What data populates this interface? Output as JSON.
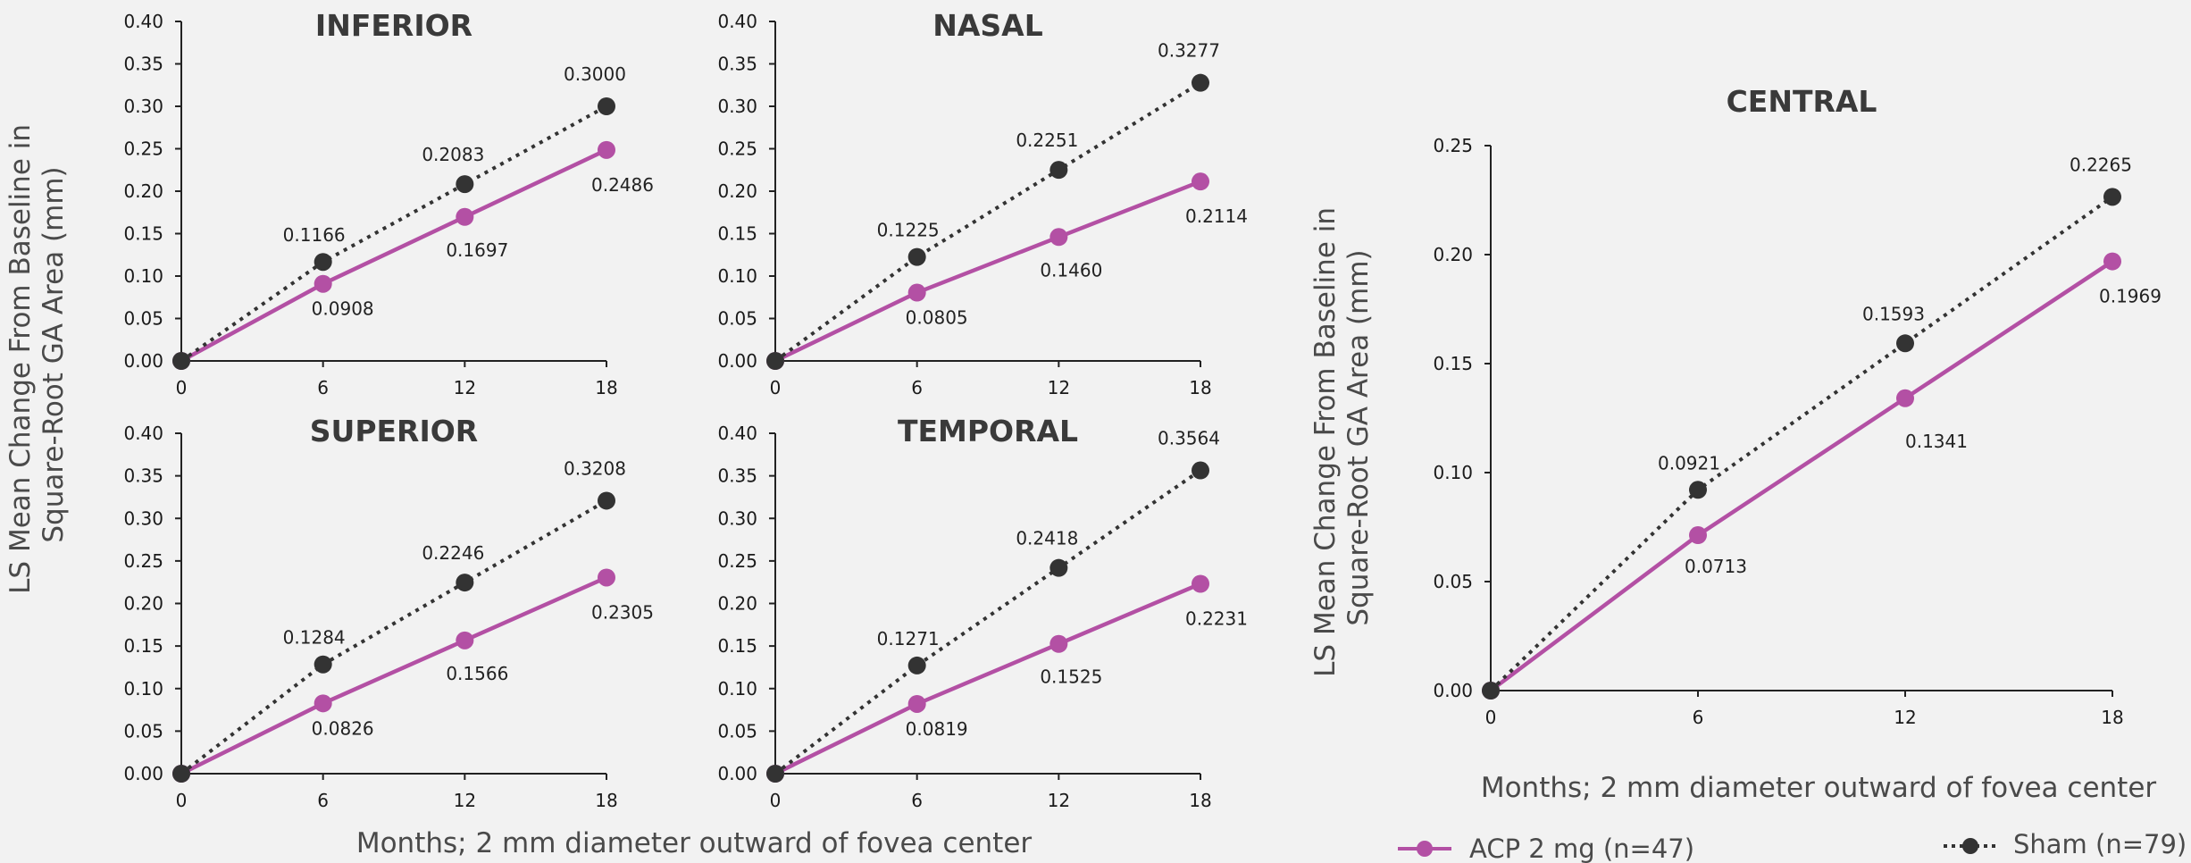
{
  "colors": {
    "acp": "#b350a4",
    "sham": "#333333",
    "text": "#4a4a4a"
  },
  "y_axis_label_small": [
    "LS Mean Change From Baseline in",
    "Square-Root GA Area (mm)"
  ],
  "y_axis_label_large": [
    "LS Mean Change From Baseline in",
    "Square-Root GA Area (mm)"
  ],
  "x_axis_label_small": "Months; 2 mm diameter outward of fovea center",
  "x_axis_label_large": "Months; 2 mm diameter outward of fovea center",
  "legend": {
    "acp": "ACP 2 mg (n=47)",
    "sham": "Sham (n=79)"
  },
  "chart_data": [
    {
      "type": "line",
      "title": "INFERIOR",
      "x": [
        0,
        6,
        12,
        18
      ],
      "ylim": [
        0,
        0.4
      ],
      "yticks": [
        "0.00",
        "0.05",
        "0.10",
        "0.15",
        "0.20",
        "0.25",
        "0.30",
        "0.35",
        "0.40"
      ],
      "xticks": [
        "0",
        "6",
        "12",
        "18"
      ],
      "series": [
        {
          "name": "ACP 2 mg (n=47)",
          "values": [
            0,
            0.0908,
            0.1697,
            0.2486
          ],
          "labels": [
            "",
            "0.0908",
            "0.1697",
            "0.2486"
          ]
        },
        {
          "name": "Sham (n=79)",
          "values": [
            0,
            0.1166,
            0.2083,
            0.3
          ],
          "labels": [
            "",
            "0.1166",
            "0.2083",
            "0.3000"
          ]
        }
      ]
    },
    {
      "type": "line",
      "title": "NASAL",
      "x": [
        0,
        6,
        12,
        18
      ],
      "ylim": [
        0,
        0.4
      ],
      "yticks": [
        "0.00",
        "0.05",
        "0.10",
        "0.15",
        "0.20",
        "0.25",
        "0.30",
        "0.35",
        "0.40"
      ],
      "xticks": [
        "0",
        "6",
        "12",
        "18"
      ],
      "series": [
        {
          "name": "ACP 2 mg (n=47)",
          "values": [
            0,
            0.0805,
            0.146,
            0.2114
          ],
          "labels": [
            "",
            "0.0805",
            "0.1460",
            "0.2114"
          ]
        },
        {
          "name": "Sham (n=79)",
          "values": [
            0,
            0.1225,
            0.2251,
            0.3277
          ],
          "labels": [
            "",
            "0.1225",
            "0.2251",
            "0.3277"
          ]
        }
      ]
    },
    {
      "type": "line",
      "title": "SUPERIOR",
      "x": [
        0,
        6,
        12,
        18
      ],
      "ylim": [
        0,
        0.4
      ],
      "yticks": [
        "0.00",
        "0.05",
        "0.10",
        "0.15",
        "0.20",
        "0.25",
        "0.30",
        "0.35",
        "0.40"
      ],
      "xticks": [
        "0",
        "6",
        "12",
        "18"
      ],
      "series": [
        {
          "name": "ACP 2 mg (n=47)",
          "values": [
            0,
            0.0826,
            0.1566,
            0.2305
          ],
          "labels": [
            "",
            "0.0826",
            "0.1566",
            "0.2305"
          ]
        },
        {
          "name": "Sham (n=79)",
          "values": [
            0,
            0.1284,
            0.2246,
            0.3208
          ],
          "labels": [
            "",
            "0.1284",
            "0.2246",
            "0.3208"
          ]
        }
      ]
    },
    {
      "type": "line",
      "title": "TEMPORAL",
      "x": [
        0,
        6,
        12,
        18
      ],
      "ylim": [
        0,
        0.4
      ],
      "yticks": [
        "0.00",
        "0.05",
        "0.10",
        "0.15",
        "0.20",
        "0.25",
        "0.30",
        "0.35",
        "0.40"
      ],
      "xticks": [
        "0",
        "6",
        "12",
        "18"
      ],
      "series": [
        {
          "name": "ACP 2 mg (n=47)",
          "values": [
            0,
            0.0819,
            0.1525,
            0.2231
          ],
          "labels": [
            "",
            "0.0819",
            "0.1525",
            "0.2231"
          ]
        },
        {
          "name": "Sham (n=79)",
          "values": [
            0,
            0.1271,
            0.2418,
            0.3564
          ],
          "labels": [
            "",
            "0.1271",
            "0.2418",
            "0.3564"
          ]
        }
      ]
    },
    {
      "type": "line",
      "title": "CENTRAL",
      "x": [
        0,
        6,
        12,
        18
      ],
      "ylim": [
        0,
        0.25
      ],
      "yticks": [
        "0.00",
        "0.05",
        "0.10",
        "0.15",
        "0.20",
        "0.25"
      ],
      "xticks": [
        "0",
        "6",
        "12",
        "18"
      ],
      "series": [
        {
          "name": "ACP 2 mg (n=47)",
          "values": [
            0,
            0.0713,
            0.1341,
            0.1969
          ],
          "labels": [
            "",
            "0.0713",
            "0.1341",
            "0.1969"
          ]
        },
        {
          "name": "Sham (n=79)",
          "values": [
            0,
            0.0921,
            0.1593,
            0.2265
          ],
          "labels": [
            "",
            "0.0921",
            "0.1593",
            "0.2265"
          ]
        }
      ]
    }
  ]
}
